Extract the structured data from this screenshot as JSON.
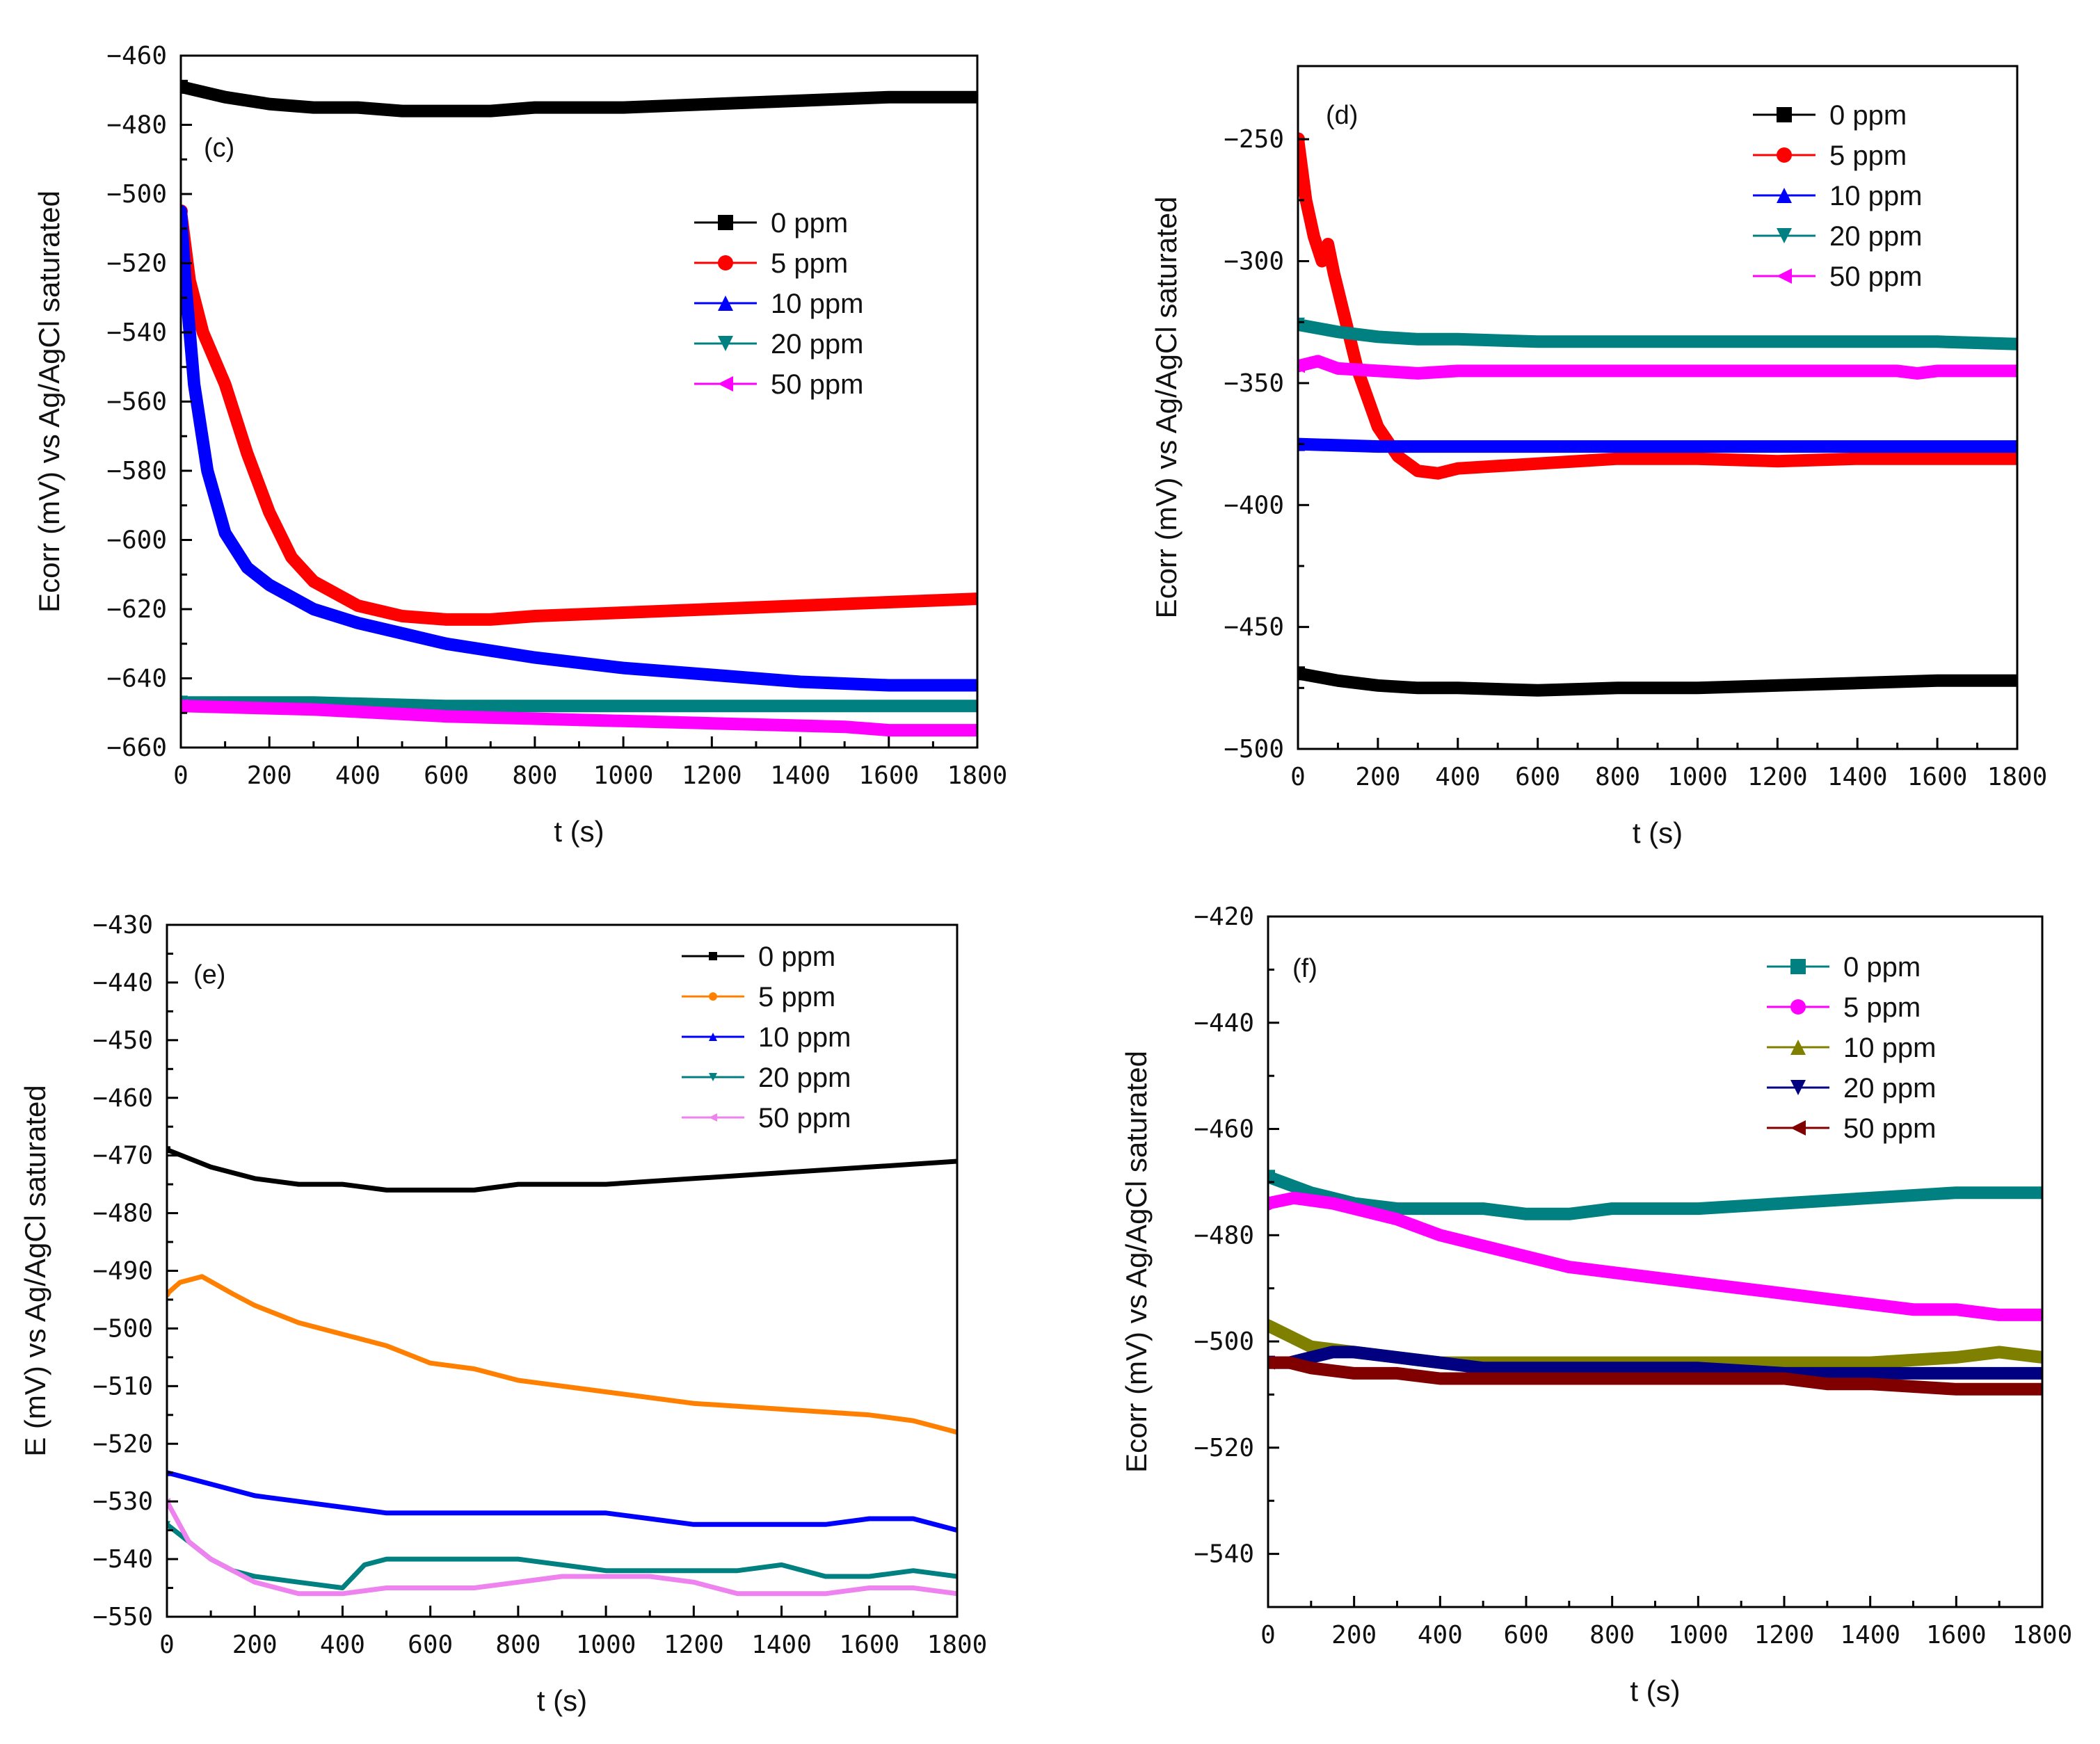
{
  "chart_data": [
    {
      "panel": "(c)",
      "type": "line",
      "xlabel": "t (s)",
      "ylabel": "Ecorr (mV) vs Ag/AgCl saturated",
      "xlim": [
        0,
        1800
      ],
      "ylim": [
        -660,
        -460
      ],
      "xticks": [
        0,
        200,
        400,
        600,
        800,
        1000,
        1200,
        1400,
        1600,
        1800
      ],
      "yticks": [
        -460,
        -480,
        -500,
        -520,
        -540,
        -560,
        -580,
        -600,
        -620,
        -640,
        -660
      ],
      "legend": "top-right, inside",
      "marker_size": "large",
      "series": [
        {
          "name": "0 ppm",
          "color": "#000000",
          "marker": "square",
          "x": [
            0,
            100,
            200,
            300,
            400,
            500,
            600,
            700,
            800,
            1000,
            1200,
            1400,
            1600,
            1800
          ],
          "y": [
            -469,
            -472,
            -474,
            -475,
            -475,
            -476,
            -476,
            -476,
            -475,
            -475,
            -474,
            -473,
            -472,
            -472
          ]
        },
        {
          "name": "5 ppm",
          "color": "#ff0000",
          "marker": "circle",
          "x": [
            0,
            20,
            50,
            100,
            150,
            200,
            250,
            300,
            400,
            500,
            600,
            700,
            800,
            1000,
            1200,
            1400,
            1600,
            1800
          ],
          "y": [
            -505,
            -525,
            -540,
            -555,
            -575,
            -592,
            -605,
            -612,
            -619,
            -622,
            -623,
            -623,
            -622,
            -621,
            -620,
            -619,
            -618,
            -617
          ]
        },
        {
          "name": "10 ppm",
          "color": "#0000ff",
          "marker": "triangle-up",
          "x": [
            0,
            10,
            30,
            60,
            100,
            150,
            200,
            300,
            400,
            500,
            600,
            800,
            1000,
            1200,
            1400,
            1600,
            1800
          ],
          "y": [
            -505,
            -525,
            -555,
            -580,
            -598,
            -608,
            -613,
            -620,
            -624,
            -627,
            -630,
            -634,
            -637,
            -639,
            -641,
            -642,
            -642
          ]
        },
        {
          "name": "20 ppm",
          "color": "#008080",
          "marker": "triangle-down",
          "x": [
            0,
            300,
            600,
            900,
            1200,
            1500,
            1800
          ],
          "y": [
            -647,
            -647,
            -648,
            -648,
            -648,
            -648,
            -648
          ]
        },
        {
          "name": "50 ppm",
          "color": "#ff00ff",
          "marker": "triangle-left",
          "x": [
            0,
            300,
            600,
            900,
            1200,
            1500,
            1600,
            1800
          ],
          "y": [
            -648,
            -649,
            -651,
            -652,
            -653,
            -654,
            -655,
            -655
          ]
        }
      ]
    },
    {
      "panel": "(d)",
      "type": "line",
      "xlabel": "t (s)",
      "ylabel": "Ecorr (mV) vs Ag/AgCl saturated",
      "xlim": [
        0,
        1800
      ],
      "ylim": [
        -500,
        -220
      ],
      "xticks": [
        0,
        200,
        400,
        600,
        800,
        1000,
        1200,
        1400,
        1600,
        1800
      ],
      "yticks": [
        -250,
        -300,
        -350,
        -400,
        -450,
        -500
      ],
      "legend": "top-right, inside",
      "marker_size": "large",
      "series": [
        {
          "name": "0 ppm",
          "color": "#000000",
          "marker": "square",
          "x": [
            0,
            100,
            200,
            300,
            400,
            600,
            800,
            1000,
            1200,
            1400,
            1600,
            1800
          ],
          "y": [
            -469,
            -472,
            -474,
            -475,
            -475,
            -476,
            -475,
            -475,
            -474,
            -473,
            -472,
            -472
          ]
        },
        {
          "name": "5 ppm",
          "color": "#ff0000",
          "marker": "circle",
          "x": [
            0,
            20,
            40,
            60,
            75,
            90,
            120,
            150,
            200,
            250,
            300,
            350,
            400,
            600,
            800,
            1000,
            1200,
            1400,
            1600,
            1800
          ],
          "y": [
            -250,
            -275,
            -290,
            -300,
            -293,
            -305,
            -325,
            -345,
            -368,
            -380,
            -386,
            -387,
            -385,
            -383,
            -381,
            -381,
            -382,
            -381,
            -381,
            -381
          ]
        },
        {
          "name": "10 ppm",
          "color": "#0000ff",
          "marker": "triangle-up",
          "x": [
            0,
            200,
            400,
            600,
            800,
            1000,
            1200,
            1400,
            1600,
            1800
          ],
          "y": [
            -375,
            -376,
            -376,
            -376,
            -376,
            -376,
            -376,
            -376,
            -376,
            -376
          ]
        },
        {
          "name": "20 ppm",
          "color": "#008080",
          "marker": "triangle-down",
          "x": [
            0,
            100,
            200,
            300,
            400,
            600,
            800,
            1000,
            1200,
            1400,
            1600,
            1800
          ],
          "y": [
            -326,
            -329,
            -331,
            -332,
            -332,
            -333,
            -333,
            -333,
            -333,
            -333,
            -333,
            -334
          ]
        },
        {
          "name": "50 ppm",
          "color": "#ff00ff",
          "marker": "triangle-left",
          "x": [
            0,
            50,
            100,
            200,
            300,
            400,
            600,
            800,
            1000,
            1200,
            1400,
            1500,
            1550,
            1600,
            1800
          ],
          "y": [
            -343,
            -341,
            -344,
            -345,
            -346,
            -345,
            -345,
            -345,
            -345,
            -345,
            -345,
            -345,
            -346,
            -345,
            -345
          ]
        }
      ]
    },
    {
      "panel": "(e)",
      "type": "line",
      "xlabel": "t (s)",
      "ylabel": "E (mV) vs Ag/AgCl saturated",
      "xlim": [
        0,
        1800
      ],
      "ylim": [
        -550,
        -430
      ],
      "xticks": [
        0,
        200,
        400,
        600,
        800,
        1000,
        1200,
        1400,
        1600,
        1800
      ],
      "yticks": [
        -430,
        -440,
        -450,
        -460,
        -470,
        -480,
        -490,
        -500,
        -510,
        -520,
        -530,
        -540,
        -550
      ],
      "legend": "top-right, inside",
      "marker_size": "small",
      "series": [
        {
          "name": "0 ppm",
          "color": "#000000",
          "marker": "square",
          "x": [
            0,
            100,
            200,
            300,
            400,
            500,
            600,
            700,
            800,
            1000,
            1200,
            1400,
            1600,
            1800
          ],
          "y": [
            -469,
            -472,
            -474,
            -475,
            -475,
            -476,
            -476,
            -476,
            -475,
            -475,
            -474,
            -473,
            -472,
            -471
          ]
        },
        {
          "name": "5 ppm",
          "color": "#ff8000",
          "marker": "circle",
          "x": [
            0,
            30,
            80,
            150,
            200,
            300,
            400,
            500,
            600,
            700,
            800,
            1000,
            1100,
            1200,
            1400,
            1600,
            1700,
            1800
          ],
          "y": [
            -494,
            -492,
            -491,
            -494,
            -496,
            -499,
            -501,
            -503,
            -506,
            -507,
            -509,
            -511,
            -512,
            -513,
            -514,
            -515,
            -516,
            -518
          ]
        },
        {
          "name": "10 ppm",
          "color": "#0000ff",
          "marker": "triangle-up",
          "x": [
            0,
            100,
            200,
            300,
            400,
            500,
            600,
            700,
            800,
            900,
            1000,
            1100,
            1200,
            1300,
            1400,
            1500,
            1600,
            1700,
            1800
          ],
          "y": [
            -525,
            -527,
            -529,
            -530,
            -531,
            -532,
            -532,
            -532,
            -532,
            -532,
            -532,
            -533,
            -534,
            -534,
            -534,
            -534,
            -533,
            -533,
            -535
          ]
        },
        {
          "name": "20 ppm",
          "color": "#008080",
          "marker": "triangle-down",
          "x": [
            0,
            50,
            100,
            150,
            200,
            300,
            400,
            450,
            500,
            600,
            700,
            800,
            900,
            1000,
            1100,
            1200,
            1300,
            1400,
            1500,
            1600,
            1700,
            1800
          ],
          "y": [
            -534,
            -537,
            -540,
            -542,
            -543,
            -544,
            -545,
            -541,
            -540,
            -540,
            -540,
            -540,
            -541,
            -542,
            -542,
            -542,
            -542,
            -541,
            -543,
            -543,
            -542,
            -543
          ]
        },
        {
          "name": "50 ppm",
          "color": "#ee82ee",
          "marker": "triangle-left",
          "x": [
            0,
            50,
            100,
            150,
            200,
            300,
            400,
            500,
            600,
            700,
            800,
            900,
            1000,
            1100,
            1200,
            1300,
            1400,
            1500,
            1600,
            1700,
            1800
          ],
          "y": [
            -530,
            -537,
            -540,
            -542,
            -544,
            -546,
            -546,
            -545,
            -545,
            -545,
            -544,
            -543,
            -543,
            -543,
            -544,
            -546,
            -546,
            -546,
            -545,
            -545,
            -546
          ]
        }
      ]
    },
    {
      "panel": "(f)",
      "type": "line",
      "xlabel": "t (s)",
      "ylabel": "Ecorr (mV) vs Ag/AgCl saturated",
      "xlim": [
        0,
        1800
      ],
      "ylim": [
        -550,
        -420
      ],
      "xticks": [
        0,
        200,
        400,
        600,
        800,
        1000,
        1200,
        1400,
        1600,
        1800
      ],
      "yticks": [
        -420,
        -440,
        -460,
        -480,
        -500,
        -520,
        -540
      ],
      "legend": "top-right, inside",
      "marker_size": "large",
      "series": [
        {
          "name": "0 ppm",
          "color": "#008080",
          "marker": "square",
          "x": [
            0,
            100,
            200,
            300,
            400,
            500,
            600,
            700,
            800,
            1000,
            1200,
            1400,
            1600,
            1800
          ],
          "y": [
            -469,
            -472,
            -474,
            -475,
            -475,
            -475,
            -476,
            -476,
            -475,
            -475,
            -474,
            -473,
            -472,
            -472
          ]
        },
        {
          "name": "5 ppm",
          "color": "#ff00ff",
          "marker": "circle",
          "x": [
            0,
            60,
            150,
            300,
            400,
            500,
            600,
            700,
            800,
            900,
            1000,
            1100,
            1200,
            1300,
            1400,
            1500,
            1600,
            1700,
            1800
          ],
          "y": [
            -474,
            -473,
            -474,
            -477,
            -480,
            -482,
            -484,
            -486,
            -487,
            -488,
            -489,
            -490,
            -491,
            -492,
            -493,
            -494,
            -494,
            -495,
            -495
          ]
        },
        {
          "name": "10 ppm",
          "color": "#808000",
          "marker": "triangle-up",
          "x": [
            0,
            50,
            100,
            200,
            300,
            400,
            500,
            600,
            800,
            1000,
            1200,
            1400,
            1600,
            1700,
            1800
          ],
          "y": [
            -497,
            -499,
            -501,
            -502,
            -503,
            -504,
            -504,
            -504,
            -504,
            -504,
            -504,
            -504,
            -503,
            -502,
            -503
          ]
        },
        {
          "name": "20 ppm",
          "color": "#000080",
          "marker": "triangle-down",
          "x": [
            0,
            50,
            100,
            150,
            200,
            300,
            400,
            500,
            600,
            800,
            1000,
            1200,
            1400,
            1600,
            1800
          ],
          "y": [
            -504,
            -504,
            -503,
            -502,
            -502,
            -503,
            -504,
            -505,
            -505,
            -505,
            -505,
            -506,
            -506,
            -506,
            -506
          ]
        },
        {
          "name": "50 ppm",
          "color": "#800000",
          "marker": "triangle-left",
          "x": [
            0,
            50,
            100,
            200,
            300,
            400,
            500,
            600,
            800,
            1000,
            1200,
            1300,
            1400,
            1600,
            1800
          ],
          "y": [
            -504,
            -504,
            -505,
            -506,
            -506,
            -507,
            -507,
            -507,
            -507,
            -507,
            -507,
            -508,
            -508,
            -509,
            -509
          ]
        }
      ]
    }
  ]
}
